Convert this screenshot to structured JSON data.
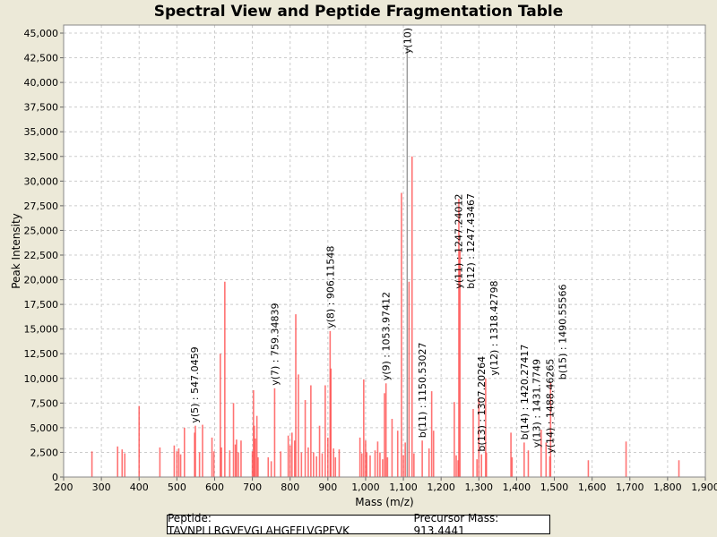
{
  "chart_data": {
    "type": "bar",
    "title": "Spectral View and Peptide Fragmentation Table",
    "xlabel": "Mass (m/z)",
    "ylabel": "Peak Intensity",
    "xlim": [
      200,
      1900
    ],
    "ylim": [
      0,
      45000
    ],
    "xticks": [
      200,
      300,
      400,
      500,
      600,
      700,
      800,
      900,
      1000,
      1100,
      1200,
      1300,
      1400,
      1500,
      1600,
      1700,
      1800,
      1900
    ],
    "yticks": [
      0,
      2500,
      5000,
      7500,
      10000,
      12500,
      15000,
      17500,
      20000,
      22500,
      25000,
      27500,
      30000,
      32500,
      35000,
      37500,
      40000,
      42500,
      45000
    ],
    "grid": true,
    "peaks": [
      [
        275,
        2600
      ],
      [
        343,
        3100
      ],
      [
        355,
        2800
      ],
      [
        362,
        2400
      ],
      [
        400,
        7200
      ],
      [
        455,
        3000
      ],
      [
        493,
        3200
      ],
      [
        500,
        2600
      ],
      [
        505,
        2900
      ],
      [
        510,
        2300
      ],
      [
        520,
        5000
      ],
      [
        547,
        4500
      ],
      [
        549,
        5200
      ],
      [
        560,
        2500
      ],
      [
        568,
        5300
      ],
      [
        593,
        4000
      ],
      [
        598,
        2600
      ],
      [
        615,
        12500
      ],
      [
        618,
        3000
      ],
      [
        627,
        19800
      ],
      [
        640,
        2700
      ],
      [
        650,
        7500
      ],
      [
        655,
        3300
      ],
      [
        658,
        3800
      ],
      [
        663,
        2500
      ],
      [
        670,
        3700
      ],
      [
        700,
        2600
      ],
      [
        703,
        8800
      ],
      [
        705,
        5200
      ],
      [
        708,
        3900
      ],
      [
        712,
        6200
      ],
      [
        715,
        2000
      ],
      [
        742,
        2000
      ],
      [
        750,
        1600
      ],
      [
        759,
        9000
      ],
      [
        775,
        2600
      ],
      [
        795,
        4200
      ],
      [
        800,
        3200
      ],
      [
        805,
        4500
      ],
      [
        812,
        3700
      ],
      [
        815,
        16500
      ],
      [
        822,
        10400
      ],
      [
        830,
        2500
      ],
      [
        840,
        7800
      ],
      [
        848,
        3000
      ],
      [
        855,
        9300
      ],
      [
        862,
        2500
      ],
      [
        870,
        2100
      ],
      [
        878,
        5200
      ],
      [
        885,
        2400
      ],
      [
        893,
        9300
      ],
      [
        900,
        4000
      ],
      [
        906,
        14800
      ],
      [
        908,
        11000
      ],
      [
        915,
        2900
      ],
      [
        920,
        2000
      ],
      [
        930,
        2800
      ],
      [
        985,
        4000
      ],
      [
        990,
        2400
      ],
      [
        995,
        9900
      ],
      [
        1000,
        3700
      ],
      [
        1003,
        2500
      ],
      [
        1012,
        2200
      ],
      [
        1025,
        2700
      ],
      [
        1032,
        3600
      ],
      [
        1038,
        2500
      ],
      [
        1045,
        1800
      ],
      [
        1050,
        8500
      ],
      [
        1054,
        9500
      ],
      [
        1058,
        2000
      ],
      [
        1070,
        5900
      ],
      [
        1085,
        4700
      ],
      [
        1095,
        28800
      ],
      [
        1100,
        2200
      ],
      [
        1105,
        3500
      ],
      [
        1115,
        19800
      ],
      [
        1123,
        32500
      ],
      [
        1128,
        2400
      ],
      [
        1150,
        3700
      ],
      [
        1168,
        2900
      ],
      [
        1175,
        8700
      ],
      [
        1180,
        4700
      ],
      [
        1235,
        7600
      ],
      [
        1240,
        2200
      ],
      [
        1245,
        1700
      ],
      [
        1247,
        28200
      ],
      [
        1250,
        23000
      ],
      [
        1285,
        6900
      ],
      [
        1295,
        1800
      ],
      [
        1300,
        8000
      ],
      [
        1307,
        2300
      ],
      [
        1318,
        10000
      ],
      [
        1320,
        2500
      ],
      [
        1385,
        4500
      ],
      [
        1388,
        2000
      ],
      [
        1420,
        3500
      ],
      [
        1431,
        2700
      ],
      [
        1465,
        4800
      ],
      [
        1478,
        3500
      ],
      [
        1488,
        2100
      ],
      [
        1490,
        9600
      ],
      [
        1590,
        1700
      ],
      [
        1690,
        3600
      ],
      [
        1830,
        1700
      ]
    ],
    "highlight_peak": [
      1110,
      43600
    ],
    "annotations": [
      {
        "label": "y(5) : 547.0459",
        "mz": 547,
        "intensity": 5200
      },
      {
        "label": "y(7) : 759.34839",
        "mz": 759,
        "intensity": 9000
      },
      {
        "label": "y(8) : 906.11548",
        "mz": 906,
        "intensity": 14800
      },
      {
        "label": "y(9) : 1053.97412",
        "mz": 1054,
        "intensity": 9500
      },
      {
        "label": "y(10)",
        "mz": 1110,
        "intensity": 43600
      },
      {
        "label": "b(11) : 1150.53027",
        "mz": 1150,
        "intensity": 3700
      },
      {
        "label": "y(11) : 1247.24012",
        "mz": 1246,
        "intensity": 18800
      },
      {
        "label": "b(12) : 1247.43467",
        "mz": 1249,
        "intensity": 18800
      },
      {
        "label": "b(13) : 1307.20264",
        "mz": 1307,
        "intensity": 2300
      },
      {
        "label": "y(12) : 1318.42798",
        "mz": 1318,
        "intensity": 10000
      },
      {
        "label": "b(14) : 1420.27417",
        "mz": 1420,
        "intensity": 3500
      },
      {
        "label": "y(13) : 1431.7749",
        "mz": 1431,
        "intensity": 2700
      },
      {
        "label": "y(14) : 1488.46265",
        "mz": 1488,
        "intensity": 2100
      },
      {
        "label": "b(15) : 1490.55566",
        "mz": 1490,
        "intensity": 9600
      }
    ],
    "legend": {
      "peptide": "Peptide: TAVNPLLRGVEVGLAHGFFLVGPFVK",
      "precursor": "Precursor Mass: 913.4441"
    },
    "colors": {
      "peak": "#ff4444",
      "highlight": "#888888",
      "grid": "#cccccc"
    }
  }
}
